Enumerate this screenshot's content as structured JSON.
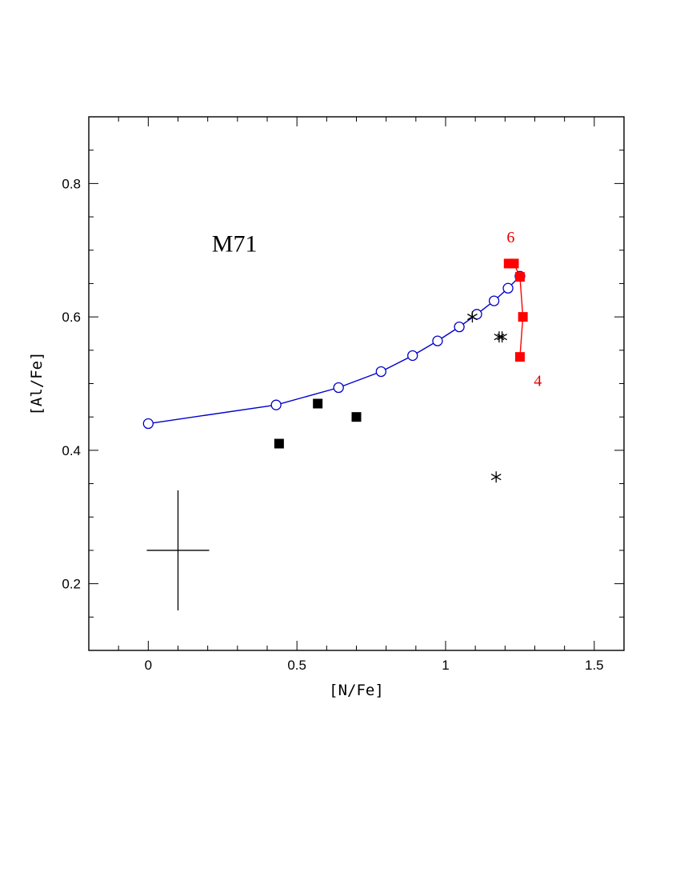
{
  "chart_data": {
    "type": "scatter",
    "title": "",
    "xlabel": "[N/Fe]",
    "ylabel": "[Al/Fe]",
    "xlim": [
      -0.2,
      1.6
    ],
    "ylim": [
      0.1,
      0.9
    ],
    "grid": false,
    "legend": "none",
    "x_ticks": [
      0,
      0.5,
      1,
      1.5
    ],
    "x_tick_labels": [
      "0",
      "0.5",
      "1",
      "1.5"
    ],
    "y_ticks": [
      0.2,
      0.4,
      0.6,
      0.8
    ],
    "y_tick_labels": [
      "0.2",
      "0.4",
      "0.6",
      "0.8"
    ],
    "annotations": [
      {
        "text": "M71",
        "x": 0.29,
        "y": 0.71,
        "color": "#000000"
      },
      {
        "text": "6",
        "x": 1.219,
        "y": 0.72,
        "color": "#e00000"
      },
      {
        "text": "4",
        "x": 1.31,
        "y": 0.505,
        "color": "#e00000"
      }
    ],
    "series": [
      {
        "marker": "open-circle",
        "line": true,
        "color": "#0000cc",
        "points": [
          {
            "x": 0.0,
            "y": 0.44
          },
          {
            "x": 0.43,
            "y": 0.468
          },
          {
            "x": 0.64,
            "y": 0.494
          },
          {
            "x": 0.783,
            "y": 0.518
          },
          {
            "x": 0.889,
            "y": 0.542
          },
          {
            "x": 0.973,
            "y": 0.564
          },
          {
            "x": 1.046,
            "y": 0.585
          },
          {
            "x": 1.105,
            "y": 0.604
          },
          {
            "x": 1.163,
            "y": 0.624
          },
          {
            "x": 1.21,
            "y": 0.643
          },
          {
            "x": 1.25,
            "y": 0.661
          }
        ]
      },
      {
        "marker": "filled-square",
        "line": true,
        "color": "#ff0000",
        "points": [
          {
            "x": 1.212,
            "y": 0.68
          },
          {
            "x": 1.23,
            "y": 0.68
          },
          {
            "x": 1.25,
            "y": 0.66
          },
          {
            "x": 1.26,
            "y": 0.6
          },
          {
            "x": 1.25,
            "y": 0.54
          }
        ]
      },
      {
        "marker": "filled-square",
        "line": false,
        "color": "#000000",
        "points": [
          {
            "x": 0.44,
            "y": 0.41
          },
          {
            "x": 0.57,
            "y": 0.47
          },
          {
            "x": 0.7,
            "y": 0.45
          }
        ]
      },
      {
        "marker": "asterisk",
        "line": false,
        "color": "#000000",
        "points": [
          {
            "x": 1.09,
            "y": 0.6
          },
          {
            "x": 1.18,
            "y": 0.57
          },
          {
            "x": 1.19,
            "y": 0.57
          },
          {
            "x": 1.17,
            "y": 0.36
          }
        ]
      }
    ],
    "error_bar": {
      "x": 0.1,
      "y": 0.25,
      "x_err": 0.105,
      "y_err": 0.09,
      "color": "#000000"
    }
  }
}
